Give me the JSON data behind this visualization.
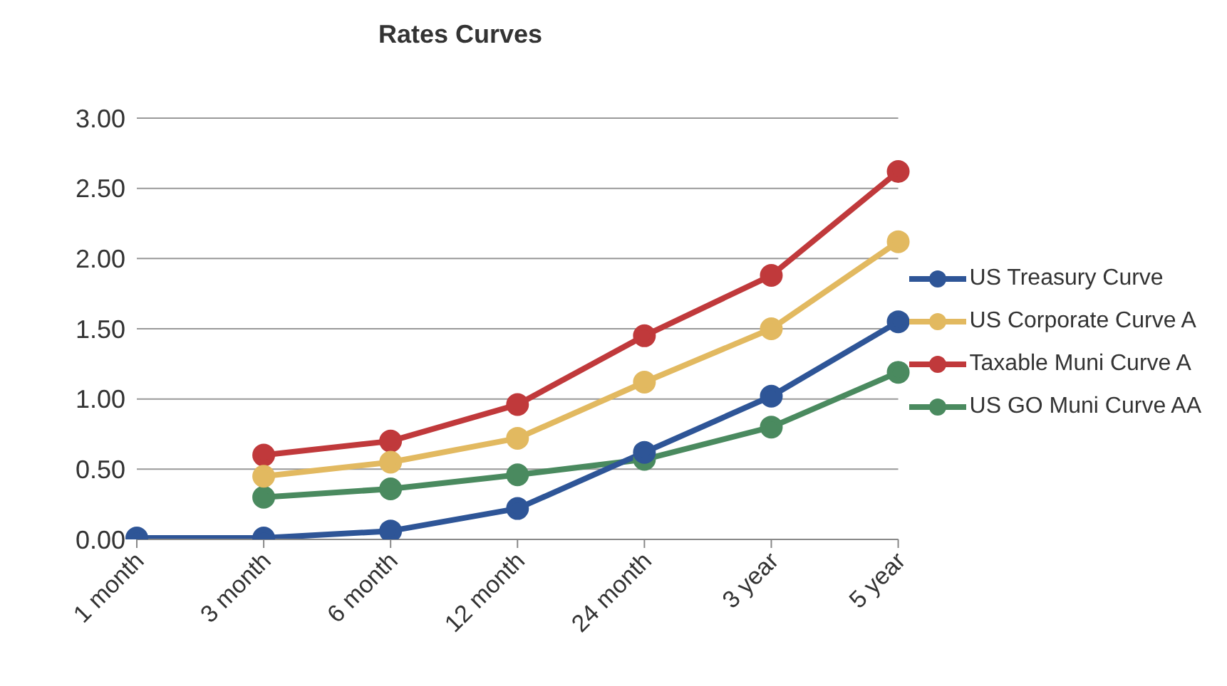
{
  "chart_data": {
    "type": "line",
    "title": "Rates Curves",
    "categories": [
      "1 month",
      "3 month",
      "6 month",
      "12 month",
      "24 month",
      "3 year",
      "5 year"
    ],
    "series": [
      {
        "name": "US Treasury Curve",
        "color": "#2e5597",
        "values": [
          0.01,
          0.01,
          0.06,
          0.22,
          0.62,
          1.02,
          1.55
        ]
      },
      {
        "name": "US Corporate Curve A",
        "color": "#e2b960",
        "values": [
          null,
          0.45,
          0.55,
          0.72,
          1.12,
          1.5,
          2.12
        ]
      },
      {
        "name": "Taxable Muni Curve A",
        "color": "#c0393b",
        "values": [
          null,
          0.6,
          0.7,
          0.96,
          1.45,
          1.88,
          2.62
        ]
      },
      {
        "name": "US GO Muni Curve AA",
        "color": "#4a8a5f",
        "values": [
          null,
          0.3,
          0.36,
          0.46,
          0.57,
          0.8,
          1.19
        ]
      }
    ],
    "ylim": [
      0,
      3
    ],
    "yticks": [
      {
        "value": 0,
        "label": "0.00"
      },
      {
        "value": 0.5,
        "label": "0.50"
      },
      {
        "value": 1,
        "label": "1.00"
      },
      {
        "value": 1.5,
        "label": "1.50"
      },
      {
        "value": 2,
        "label": "2.00"
      },
      {
        "value": 2.5,
        "label": "2.50"
      },
      {
        "value": 3,
        "label": "3.00"
      }
    ],
    "grid": "y",
    "legend": "right",
    "marker": "circle",
    "line_style": "solid"
  }
}
